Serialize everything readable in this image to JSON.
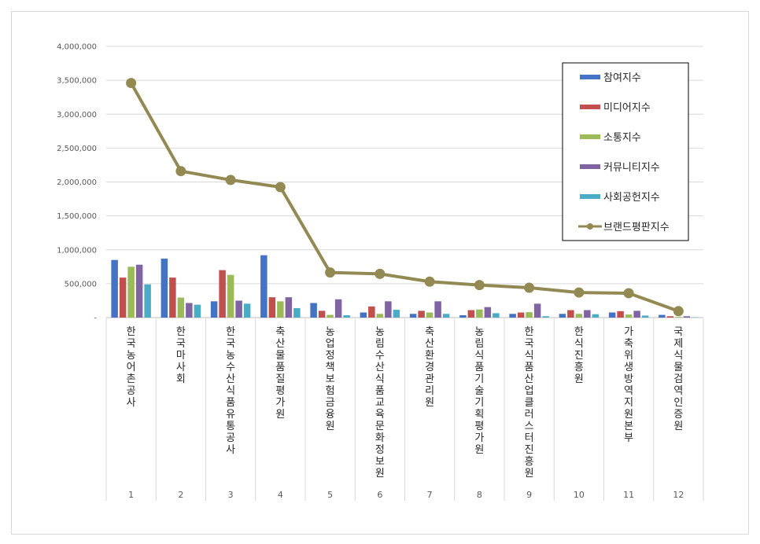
{
  "chart_data": {
    "type": "bar",
    "categories": [
      "한국농어촌공사",
      "한국마사회",
      "한국농수산식품유통공사",
      "축산물품질평가원",
      "농업정책보험금융원",
      "농림수산식품교육문화정보원",
      "축산환경관리원",
      "농림식품기술기획평가원",
      "한국식품산업클러스터진흥원",
      "한식진흥원",
      "가축위생방역지원본부",
      "국제식물검역인증원"
    ],
    "ranks": [
      "1",
      "2",
      "3",
      "4",
      "5",
      "6",
      "7",
      "8",
      "9",
      "10",
      "11",
      "12"
    ],
    "series": [
      {
        "name": "참여지수",
        "kind": "bar",
        "color": "#4472c4",
        "values": [
          850000,
          870000,
          240000,
          920000,
          215000,
          75000,
          55000,
          35000,
          55000,
          55000,
          75000,
          40000
        ]
      },
      {
        "name": "미디어지수",
        "kind": "bar",
        "color": "#c0504d",
        "values": [
          590000,
          590000,
          700000,
          300000,
          100000,
          165000,
          100000,
          110000,
          75000,
          110000,
          95000,
          20000
        ]
      },
      {
        "name": "소통지수",
        "kind": "bar",
        "color": "#9bbb59",
        "values": [
          750000,
          295000,
          630000,
          240000,
          40000,
          55000,
          75000,
          120000,
          80000,
          55000,
          45000,
          10000
        ]
      },
      {
        "name": "커뮤니티지수",
        "kind": "bar",
        "color": "#8064a2",
        "values": [
          780000,
          215000,
          250000,
          300000,
          270000,
          240000,
          240000,
          155000,
          205000,
          110000,
          100000,
          20000
        ]
      },
      {
        "name": "사회공헌지수",
        "kind": "bar",
        "color": "#4bacc6",
        "values": [
          490000,
          190000,
          205000,
          140000,
          35000,
          115000,
          55000,
          65000,
          20000,
          50000,
          30000,
          5000
        ]
      },
      {
        "name": "브랜드평판지수",
        "kind": "line",
        "color": "#938953",
        "values": [
          3460000,
          2160000,
          2030000,
          1925000,
          665000,
          645000,
          530000,
          480000,
          440000,
          370000,
          360000,
          95000
        ]
      }
    ],
    "yticks": [
      "-",
      "500,000",
      "1,000,000",
      "1,500,000",
      "2,000,000",
      "2,500,000",
      "3,000,000",
      "3,500,000",
      "4,000,000"
    ],
    "ylim": [
      0,
      4000000
    ],
    "grid": true,
    "legend": "top-right",
    "title": "",
    "xlabel": "",
    "ylabel": ""
  }
}
